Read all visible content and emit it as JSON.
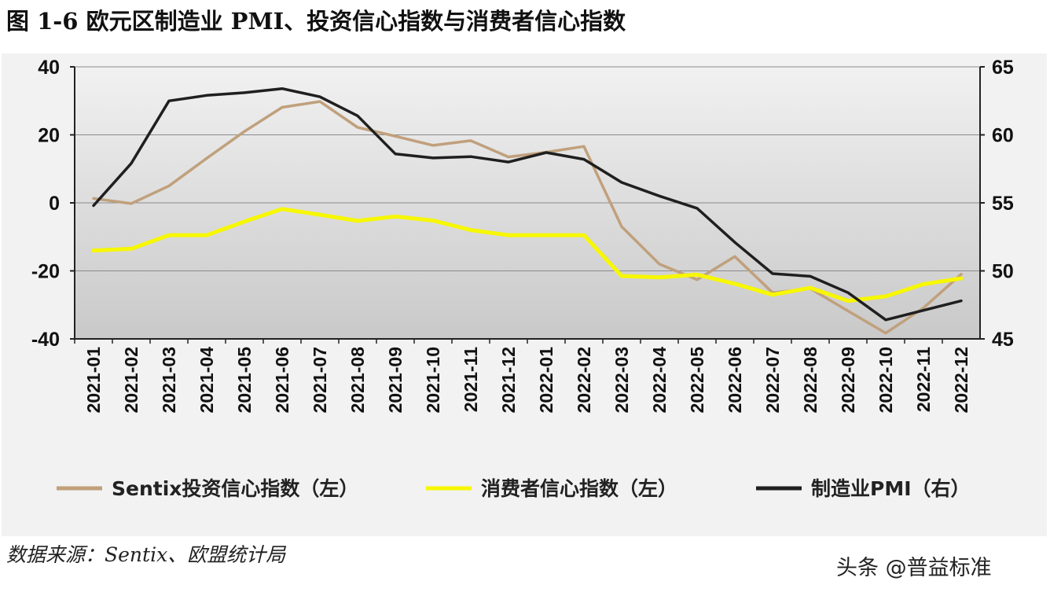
{
  "figure": {
    "title": "图 1-6  欧元区制造业 PMI、投资信心指数与消费者信心指数",
    "source": "数据来源：Sentix、欧盟统计局",
    "watermark": "头条 @普益标准"
  },
  "chart_data": {
    "type": "line",
    "title": "图 1-6  欧元区制造业 PMI、投资信心指数与消费者信心指数",
    "categories": [
      "2021-01",
      "2021-02",
      "2021-03",
      "2021-04",
      "2021-05",
      "2021-06",
      "2021-07",
      "2021-08",
      "2021-09",
      "2021-10",
      "2021-11",
      "2021-12",
      "2022-01",
      "2022-02",
      "2022-03",
      "2022-04",
      "2022-05",
      "2022-06",
      "2022-07",
      "2022-08",
      "2022-09",
      "2022-10",
      "2022-11",
      "2022-12"
    ],
    "y_left": {
      "min": -40,
      "max": 40,
      "ticks": [
        "40",
        "20",
        "0",
        "-20",
        "-40"
      ]
    },
    "y_right": {
      "min": 45,
      "max": 65,
      "ticks": [
        "65",
        "60",
        "55",
        "50",
        "45"
      ]
    },
    "grid": true,
    "legend_position": "bottom",
    "series": [
      {
        "name": "Sentix投资信心指数（左）",
        "axis": "left",
        "color": "#c0a07c",
        "values": [
          1.3,
          -0.2,
          5.0,
          13.1,
          21.0,
          28.1,
          29.8,
          22.2,
          19.6,
          16.9,
          18.3,
          13.5,
          14.9,
          16.6,
          -7.0,
          -18.0,
          -22.6,
          -15.8,
          -26.4,
          -25.2,
          -31.8,
          -38.3,
          -30.9,
          -21.0
        ]
      },
      {
        "name": "消费者信心指数（左）",
        "axis": "left",
        "color": "#f7f700",
        "values": [
          -14.0,
          -13.5,
          -9.5,
          -9.5,
          -5.5,
          -1.8,
          -3.5,
          -5.3,
          -4.0,
          -5.2,
          -8.0,
          -9.5,
          -9.5,
          -9.5,
          -21.5,
          -21.9,
          -21.1,
          -23.8,
          -27.0,
          -25.0,
          -28.8,
          -27.5,
          -23.9,
          -22.2
        ]
      },
      {
        "name": "制造业PMI（右）",
        "axis": "right",
        "color": "#1f1f1f",
        "values": [
          54.8,
          57.9,
          62.5,
          62.9,
          63.1,
          63.4,
          62.8,
          61.4,
          58.6,
          58.3,
          58.4,
          58.0,
          58.7,
          58.2,
          56.5,
          55.5,
          54.6,
          52.1,
          49.8,
          49.6,
          48.4,
          46.4,
          47.1,
          47.8
        ]
      }
    ]
  }
}
